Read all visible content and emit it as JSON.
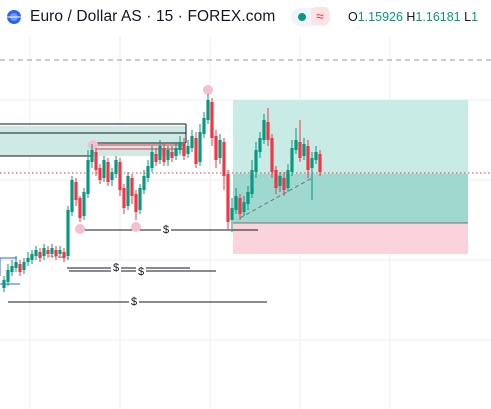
{
  "header": {
    "symbol_title": "Euro / Dollar AS · 15 · FOREX.com",
    "wave_glyph": "≈",
    "ohlc": [
      {
        "label": "O",
        "value": "1.15926"
      },
      {
        "label": "H",
        "value": "1.16181"
      },
      {
        "label": "L",
        "value": "1"
      }
    ],
    "icons": [
      "globe-icon",
      "market-status-dot-icon",
      "wave-icon"
    ]
  },
  "colors": {
    "bull": "#089981",
    "bear": "#f23645",
    "profit_zone": "#b2dfdb",
    "loss_zone": "#f8c6cf",
    "supply_zone": "#c8e6df",
    "liquidity_line": "#000000",
    "pivot_marker": "#f3bcd0"
  },
  "chart_data": {
    "type": "candlestick",
    "annotations": {
      "liquidity_marks": [
        "$",
        "$",
        "$",
        "$"
      ]
    }
  }
}
